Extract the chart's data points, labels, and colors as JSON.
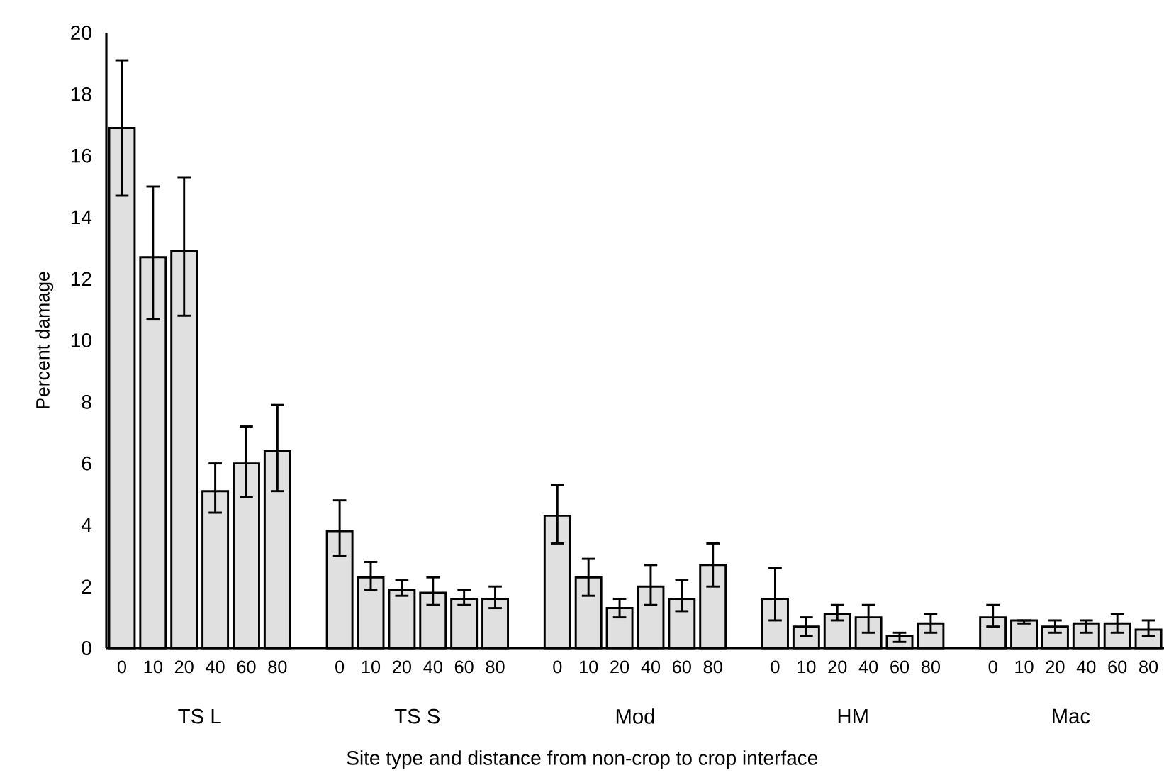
{
  "chart_data": {
    "type": "bar",
    "xlabel": "Site type and distance from non-crop to crop interface",
    "ylabel": "Percent damage",
    "categories": [
      "0",
      "10",
      "20",
      "40",
      "60",
      "80",
      null,
      "0",
      "10",
      "20",
      "40",
      "60",
      "80",
      null,
      "0",
      "10",
      "20",
      "40",
      "60",
      "80",
      null,
      "0",
      "10",
      "20",
      "40",
      "60",
      "80",
      null,
      "0",
      "10",
      "20",
      "40",
      "60",
      "80"
    ],
    "values": [
      16.9,
      12.7,
      12.9,
      5.1,
      6.0,
      6.4,
      null,
      3.8,
      2.3,
      1.9,
      1.8,
      1.6,
      1.6,
      null,
      4.3,
      2.3,
      1.3,
      2.0,
      1.6,
      2.7,
      null,
      1.6,
      0.7,
      1.1,
      1.0,
      0.4,
      0.8,
      null,
      1.0,
      0.9,
      0.7,
      0.8,
      0.8,
      0.6
    ],
    "errors": [
      [
        14.7,
        19.1
      ],
      [
        10.7,
        15.0
      ],
      [
        10.8,
        15.3
      ],
      [
        4.4,
        6.0
      ],
      [
        4.9,
        7.2
      ],
      [
        5.1,
        7.9
      ],
      null,
      [
        3.0,
        4.8
      ],
      [
        1.9,
        2.8
      ],
      [
        1.7,
        2.2
      ],
      [
        1.4,
        2.3
      ],
      [
        1.4,
        1.9
      ],
      [
        1.3,
        2.0
      ],
      null,
      [
        3.4,
        5.3
      ],
      [
        1.7,
        2.9
      ],
      [
        1.0,
        1.6
      ],
      [
        1.4,
        2.7
      ],
      [
        1.2,
        2.2
      ],
      [
        2.0,
        3.4
      ],
      null,
      [
        0.9,
        2.6
      ],
      [
        0.4,
        1.0
      ],
      [
        0.9,
        1.4
      ],
      [
        0.5,
        1.4
      ],
      [
        0.2,
        0.5
      ],
      [
        0.5,
        1.1
      ],
      null,
      [
        0.7,
        1.4
      ],
      [
        0.8,
        0.9
      ],
      [
        0.5,
        0.9
      ],
      [
        0.5,
        0.9
      ],
      [
        0.5,
        1.1
      ],
      [
        0.4,
        0.9
      ]
    ],
    "color": "#e0e0e0",
    "ylim": [
      0,
      20
    ],
    "yticks": [
      0,
      2,
      4,
      6,
      8,
      10,
      12,
      14,
      16,
      18,
      20
    ],
    "annotations": [
      "TS L",
      "TS S",
      "Mod",
      "HM",
      "Mac"
    ]
  }
}
